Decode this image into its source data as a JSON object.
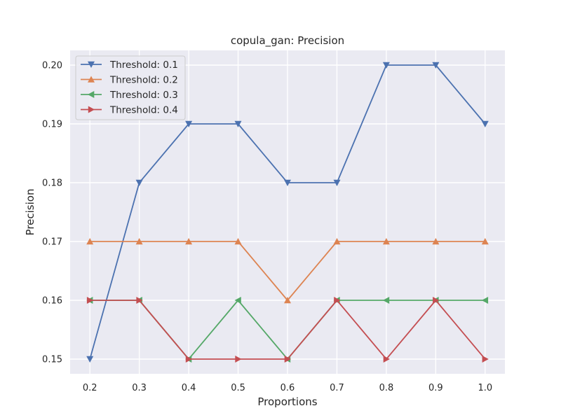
{
  "chart_data": {
    "type": "line",
    "title": "copula_gan: Precision",
    "xlabel": "Proportions",
    "ylabel": "Precision",
    "x": [
      0.2,
      0.3,
      0.4,
      0.5,
      0.6,
      0.7,
      0.8,
      0.9,
      1.0
    ],
    "x_tick_labels": [
      "0.2",
      "0.3",
      "0.4",
      "0.5",
      "0.6",
      "0.7",
      "0.8",
      "0.9",
      "1.0"
    ],
    "y_ticks": [
      0.15,
      0.16,
      0.17,
      0.18,
      0.19,
      0.2
    ],
    "y_tick_labels": [
      "0.15",
      "0.16",
      "0.17",
      "0.18",
      "0.19",
      "0.20"
    ],
    "xlim": [
      0.16,
      1.04
    ],
    "ylim": [
      0.1475,
      0.2025
    ],
    "grid": true,
    "legend_position": "top-left",
    "series": [
      {
        "name": "Threshold: 0.1",
        "color": "#4c72b0",
        "marker": "triangle-down",
        "values": [
          0.15,
          0.18,
          0.19,
          0.19,
          0.18,
          0.18,
          0.2,
          0.2,
          0.19
        ]
      },
      {
        "name": "Threshold: 0.2",
        "color": "#dd8452",
        "marker": "triangle-up",
        "values": [
          0.17,
          0.17,
          0.17,
          0.17,
          0.16,
          0.17,
          0.17,
          0.17,
          0.17
        ]
      },
      {
        "name": "Threshold: 0.3",
        "color": "#55a868",
        "marker": "triangle-left",
        "values": [
          0.16,
          0.16,
          0.15,
          0.16,
          0.15,
          0.16,
          0.16,
          0.16,
          0.16
        ]
      },
      {
        "name": "Threshold: 0.4",
        "color": "#c44e52",
        "marker": "triangle-right",
        "values": [
          0.16,
          0.16,
          0.15,
          0.15,
          0.15,
          0.16,
          0.15,
          0.16,
          0.15
        ]
      }
    ]
  }
}
